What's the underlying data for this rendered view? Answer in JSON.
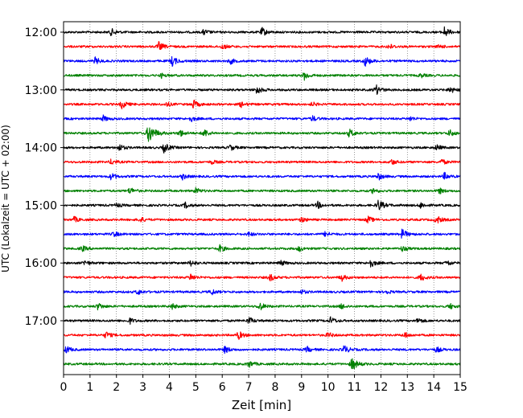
{
  "chart_data": {
    "type": "line",
    "xlabel": "Zeit  [min]",
    "ylabel": "UTC (Lokalzeit = UTC + 02:00)",
    "xlim": [
      0,
      15
    ],
    "x_ticks": [
      0,
      1,
      2,
      3,
      4,
      5,
      6,
      7,
      8,
      9,
      10,
      11,
      12,
      13,
      14,
      15
    ],
    "x_tick_labels": [
      "0",
      "1",
      "2",
      "3",
      "4",
      "5",
      "6",
      "7",
      "8",
      "9",
      "10",
      "11",
      "12",
      "13",
      "14",
      "15"
    ],
    "y_ticks": [
      "12:00",
      "13:00",
      "14:00",
      "15:00",
      "16:00",
      "17:00"
    ],
    "trace_minutes_per_line": 15,
    "color_cycle": [
      "#000000",
      "#ff0000",
      "#0000ff",
      "#008000"
    ],
    "grid": "vertical dotted lines at each minute",
    "traces": [
      {
        "start": "12:00",
        "color": "#000000",
        "events": [
          [
            1.8,
            0.5
          ],
          [
            5.3,
            0.4
          ],
          [
            7.5,
            0.6
          ],
          [
            14.4,
            0.7
          ]
        ]
      },
      {
        "start": "12:15",
        "color": "#ff0000",
        "events": [
          [
            3.6,
            0.6
          ],
          [
            6.0,
            0.4
          ],
          [
            12.3,
            0.4
          ],
          [
            14.2,
            0.3
          ]
        ]
      },
      {
        "start": "12:30",
        "color": "#0000ff",
        "events": [
          [
            1.2,
            0.5
          ],
          [
            4.1,
            0.7
          ],
          [
            6.3,
            0.4
          ],
          [
            11.4,
            0.7
          ]
        ]
      },
      {
        "start": "12:45",
        "color": "#008000",
        "events": [
          [
            3.7,
            0.3
          ],
          [
            9.1,
            0.6
          ],
          [
            13.5,
            0.3
          ]
        ]
      },
      {
        "start": "13:00",
        "color": "#000000",
        "events": [
          [
            7.3,
            0.6
          ],
          [
            11.8,
            0.7
          ],
          [
            14.6,
            0.5
          ]
        ]
      },
      {
        "start": "13:15",
        "color": "#ff0000",
        "events": [
          [
            2.2,
            0.6
          ],
          [
            3.9,
            0.3
          ],
          [
            4.9,
            0.6
          ],
          [
            6.7,
            0.4
          ],
          [
            9.4,
            0.3
          ]
        ]
      },
      {
        "start": "13:30",
        "color": "#0000ff",
        "events": [
          [
            1.5,
            0.4
          ],
          [
            4.8,
            0.4
          ],
          [
            9.4,
            0.4
          ],
          [
            13.1,
            0.3
          ]
        ]
      },
      {
        "start": "13:45",
        "color": "#008000",
        "events": [
          [
            3.2,
            1.4
          ],
          [
            4.4,
            0.5
          ],
          [
            5.3,
            0.6
          ],
          [
            10.8,
            0.6
          ],
          [
            14.6,
            0.5
          ]
        ]
      },
      {
        "start": "14:00",
        "color": "#000000",
        "events": [
          [
            2.1,
            0.5
          ],
          [
            3.8,
            0.7
          ],
          [
            6.3,
            0.4
          ],
          [
            14.1,
            0.4
          ]
        ]
      },
      {
        "start": "14:15",
        "color": "#ff0000",
        "events": [
          [
            1.8,
            0.4
          ],
          [
            5.6,
            0.3
          ],
          [
            12.4,
            0.4
          ],
          [
            14.3,
            0.4
          ]
        ]
      },
      {
        "start": "14:30",
        "color": "#0000ff",
        "events": [
          [
            1.8,
            0.5
          ],
          [
            4.5,
            0.4
          ],
          [
            11.9,
            0.5
          ],
          [
            14.4,
            0.5
          ]
        ]
      },
      {
        "start": "14:45",
        "color": "#008000",
        "events": [
          [
            2.5,
            0.5
          ],
          [
            5.0,
            0.4
          ],
          [
            11.7,
            0.4
          ],
          [
            14.2,
            0.4
          ]
        ]
      },
      {
        "start": "15:00",
        "color": "#000000",
        "events": [
          [
            2.0,
            0.3
          ],
          [
            4.6,
            0.4
          ],
          [
            9.6,
            0.5
          ],
          [
            11.9,
            0.8
          ],
          [
            13.5,
            0.4
          ]
        ]
      },
      {
        "start": "15:15",
        "color": "#ff0000",
        "events": [
          [
            0.4,
            0.4
          ],
          [
            2.9,
            0.4
          ],
          [
            9.0,
            0.4
          ],
          [
            11.5,
            0.5
          ],
          [
            14.1,
            0.6
          ]
        ]
      },
      {
        "start": "15:30",
        "color": "#0000ff",
        "events": [
          [
            1.9,
            0.4
          ],
          [
            7.0,
            0.3
          ],
          [
            9.9,
            0.4
          ],
          [
            12.8,
            0.7
          ]
        ]
      },
      {
        "start": "15:45",
        "color": "#008000",
        "events": [
          [
            0.7,
            0.4
          ],
          [
            5.9,
            0.5
          ],
          [
            8.9,
            0.4
          ],
          [
            12.8,
            0.4
          ]
        ]
      },
      {
        "start": "16:00",
        "color": "#000000",
        "events": [
          [
            0.8,
            0.4
          ],
          [
            4.8,
            0.4
          ],
          [
            8.2,
            0.4
          ],
          [
            11.6,
            0.6
          ],
          [
            14.5,
            0.4
          ]
        ]
      },
      {
        "start": "16:15",
        "color": "#ff0000",
        "events": [
          [
            4.8,
            0.5
          ],
          [
            7.8,
            0.5
          ],
          [
            10.5,
            0.5
          ],
          [
            13.5,
            0.5
          ]
        ]
      },
      {
        "start": "16:30",
        "color": "#0000ff",
        "events": [
          [
            2.8,
            0.4
          ],
          [
            5.6,
            0.4
          ],
          [
            9.0,
            0.3
          ],
          [
            12.2,
            0.3
          ]
        ]
      },
      {
        "start": "16:45",
        "color": "#008000",
        "events": [
          [
            1.3,
            0.5
          ],
          [
            4.1,
            0.4
          ],
          [
            7.4,
            0.6
          ],
          [
            10.5,
            0.4
          ],
          [
            14.6,
            0.4
          ]
        ]
      },
      {
        "start": "17:00",
        "color": "#000000",
        "events": [
          [
            2.5,
            0.4
          ],
          [
            7.0,
            0.5
          ],
          [
            10.1,
            0.5
          ],
          [
            13.4,
            0.4
          ]
        ]
      },
      {
        "start": "17:15",
        "color": "#ff0000",
        "events": [
          [
            1.6,
            0.5
          ],
          [
            6.6,
            0.6
          ],
          [
            10.0,
            0.4
          ],
          [
            12.9,
            0.4
          ]
        ]
      },
      {
        "start": "17:30",
        "color": "#0000ff",
        "events": [
          [
            0.1,
            0.5
          ],
          [
            6.1,
            0.5
          ],
          [
            9.2,
            0.4
          ],
          [
            10.6,
            0.6
          ],
          [
            14.1,
            0.4
          ]
        ]
      },
      {
        "start": "17:45",
        "color": "#008000",
        "events": [
          [
            7.0,
            0.5
          ],
          [
            10.9,
            0.9
          ]
        ]
      }
    ]
  }
}
